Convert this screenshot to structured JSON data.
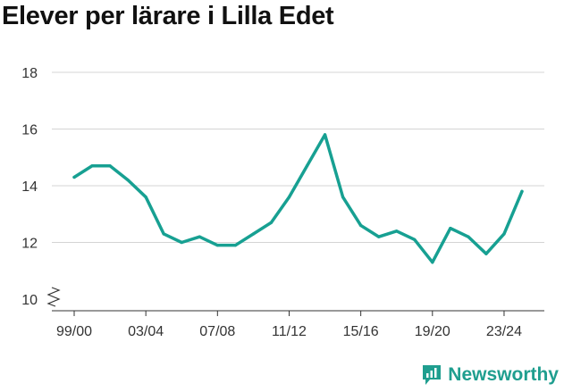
{
  "chart_data": {
    "type": "line",
    "title": "Elever per lärare i Lilla Edet",
    "xlabel": "",
    "ylabel": "",
    "ylim": [
      10,
      18
    ],
    "y_ticks": [
      10,
      12,
      14,
      16,
      18
    ],
    "x_tick_labels": [
      "99/00",
      "03/04",
      "07/08",
      "11/12",
      "15/16",
      "19/20",
      "23/24"
    ],
    "categories": [
      "99/00",
      "00/01",
      "01/02",
      "02/03",
      "03/04",
      "04/05",
      "05/06",
      "06/07",
      "07/08",
      "08/09",
      "09/10",
      "10/11",
      "11/12",
      "12/13",
      "13/14",
      "14/15",
      "15/16",
      "16/17",
      "17/18",
      "18/19",
      "19/20",
      "20/21",
      "21/22",
      "22/23",
      "23/24",
      "24/25"
    ],
    "series": [
      {
        "name": "Elever per lärare",
        "color": "#17a092",
        "values": [
          14.3,
          14.7,
          14.7,
          14.2,
          13.6,
          12.3,
          12.0,
          12.2,
          11.9,
          11.9,
          12.3,
          12.7,
          13.6,
          14.7,
          15.8,
          13.6,
          12.6,
          12.2,
          12.4,
          12.1,
          11.3,
          12.5,
          12.2,
          11.6,
          12.3,
          13.8
        ]
      }
    ],
    "grid": true,
    "axis_break": true
  },
  "brand": {
    "name": "Newsworthy",
    "color": "#1f9e8f"
  }
}
